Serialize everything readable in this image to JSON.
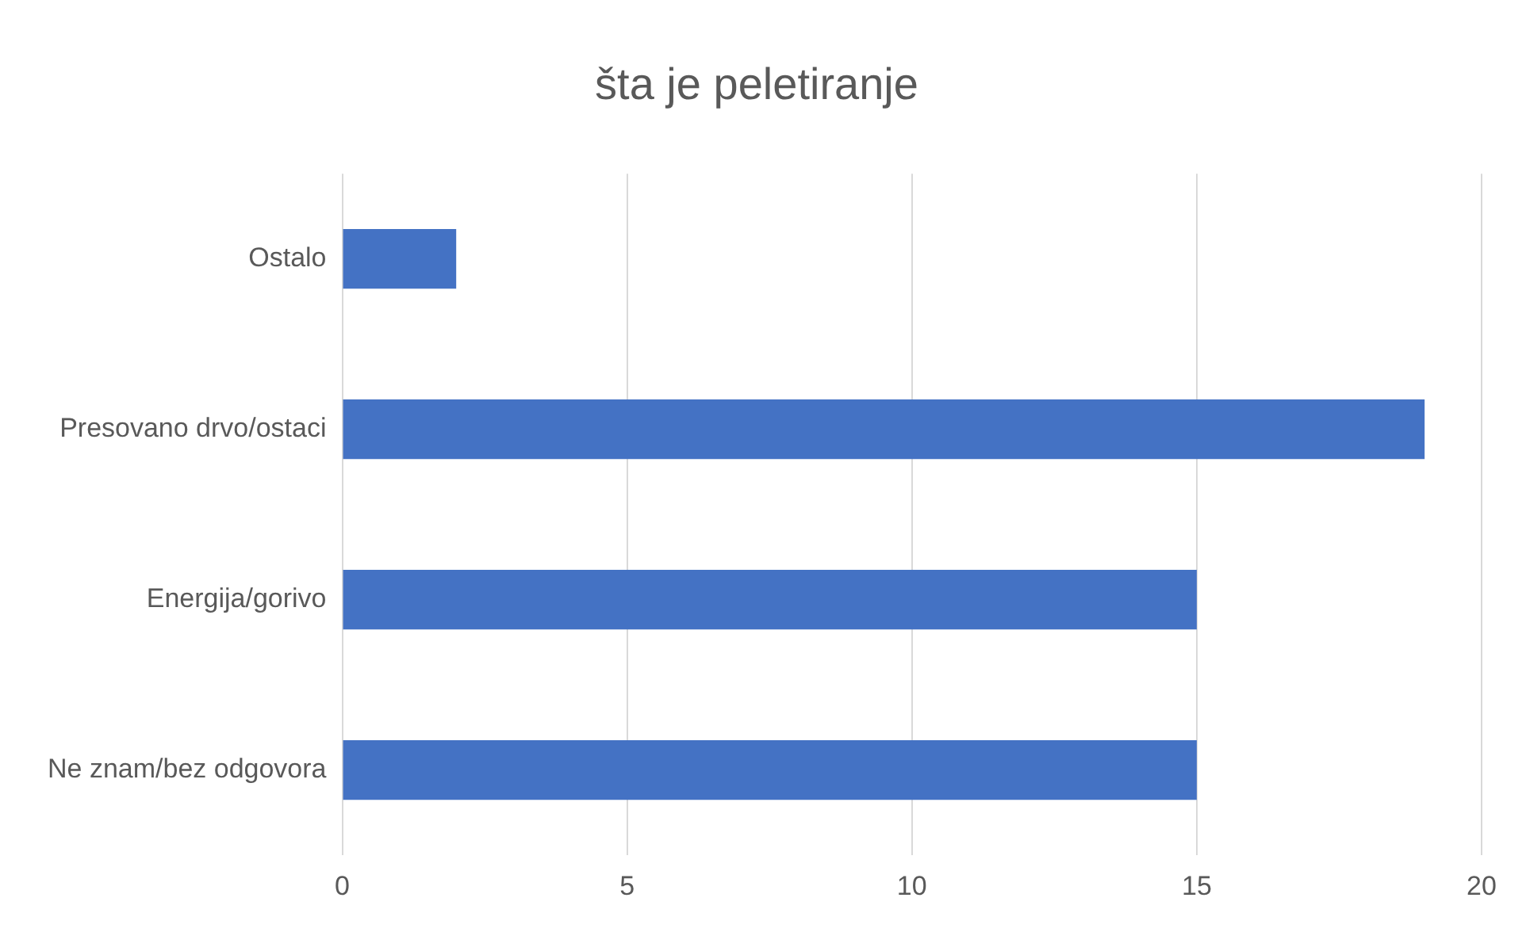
{
  "chart_data": {
    "type": "bar",
    "orientation": "horizontal",
    "title": "šta je peletiranje",
    "categories": [
      "Ostalo",
      "Presovano drvo/ostaci",
      "Energija/gorivo",
      "Ne znam/bez odgovora"
    ],
    "values": [
      2,
      19,
      15,
      15
    ],
    "color": "#4472c4",
    "xlim": [
      0,
      20
    ],
    "xticks": [
      0,
      5,
      10,
      15,
      20
    ],
    "grid": "x"
  }
}
